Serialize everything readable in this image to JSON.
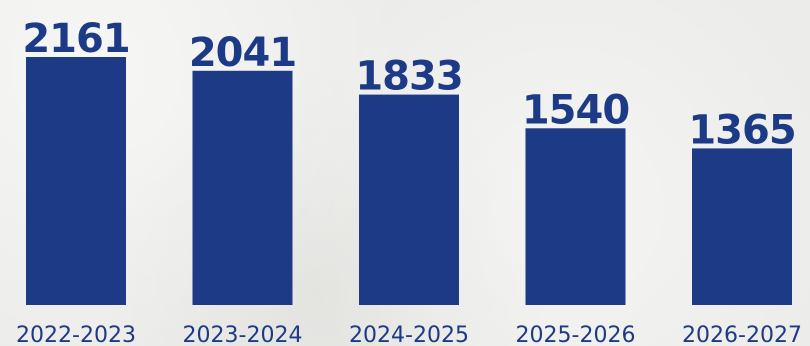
{
  "chart_data": {
    "type": "bar",
    "categories": [
      "2022-2023",
      "2023-2024",
      "2024-2025",
      "2025-2026",
      "2026-2027"
    ],
    "values": [
      2161,
      2041,
      1833,
      1540,
      1365
    ],
    "ylim": [
      0,
      2161
    ],
    "grid": false,
    "colors": {
      "bar": "#1c3a85",
      "value_label": "#1c3a85",
      "tick_label": "#1c3a85"
    }
  }
}
